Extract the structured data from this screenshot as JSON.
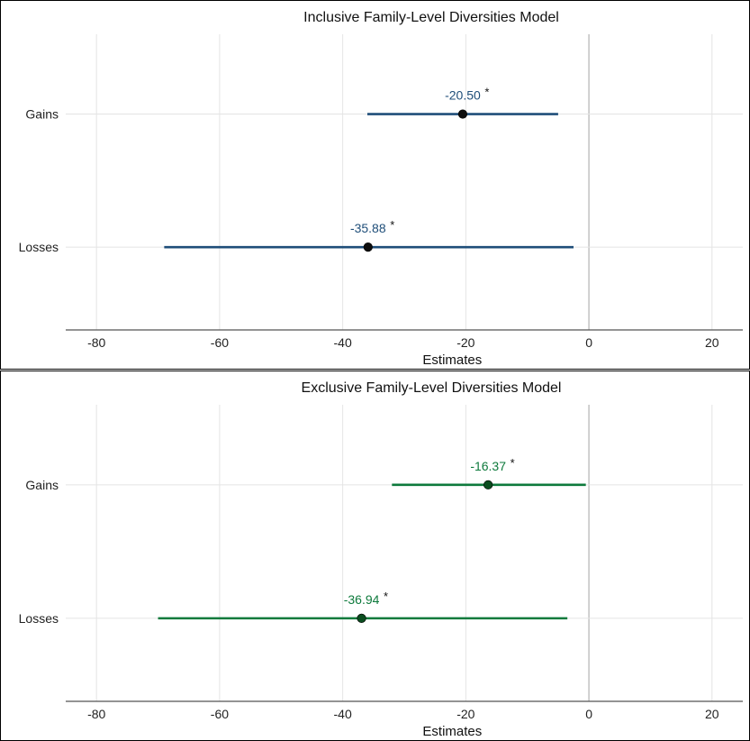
{
  "chart_data": [
    {
      "type": "forest",
      "title": "Inclusive Family-Level Diversities Model",
      "xlabel": "Estimates",
      "xlim": [
        -85,
        25
      ],
      "xticks": [
        -80,
        -60,
        -40,
        -20,
        0,
        20
      ],
      "xtick_labels": [
        "-80",
        "-60",
        "-40",
        "-20",
        "0",
        "20"
      ],
      "categories": [
        "Gains",
        "Losses"
      ],
      "estimates": [
        -20.5,
        -35.88
      ],
      "ci_low": [
        -36.0,
        -69.0
      ],
      "ci_high": [
        -5.0,
        -2.5
      ],
      "labels": [
        "-20.50",
        "-35.88"
      ],
      "significance": [
        "*",
        "*"
      ],
      "color": "#1f4e79",
      "grid": true,
      "legend": "none"
    },
    {
      "type": "forest",
      "title": "Exclusive Family-Level Diversities Model",
      "xlabel": "Estimates",
      "xlim": [
        -85,
        25
      ],
      "xticks": [
        -80,
        -60,
        -40,
        -20,
        0,
        20
      ],
      "xtick_labels": [
        "-80",
        "-60",
        "-40",
        "-20",
        "0",
        "20"
      ],
      "categories": [
        "Gains",
        "Losses"
      ],
      "estimates": [
        -16.37,
        -36.94
      ],
      "ci_low": [
        -32.0,
        -70.0
      ],
      "ci_high": [
        -0.5,
        -3.5
      ],
      "labels": [
        "-16.37",
        "-36.94"
      ],
      "significance": [
        "*",
        "*"
      ],
      "color": "#0e7a3c",
      "grid": true,
      "legend": "none"
    }
  ]
}
